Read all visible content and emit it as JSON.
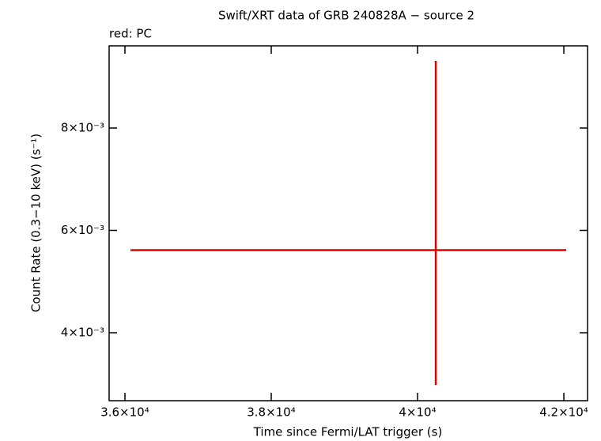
{
  "chart_data": {
    "type": "errorbar",
    "title": "Swift/XRT data of GRB 240828A − source 2",
    "x_label": "Time since Fermi/LAT trigger (s)",
    "y_label": "Count Rate (0.3−10 keV) (s⁻¹)",
    "series": [
      {
        "name": "red: PC",
        "color": "#e00000",
        "x": [
          40249
        ],
        "xerr_minus": [
          4173
        ],
        "xerr_plus": [
          1783
        ],
        "values": [
          0.005614
        ],
        "yerr_minus": [
          0.002634
        ],
        "yerr_plus": [
          0.003699
        ]
      }
    ],
    "xlim": [
      35784,
      42324
    ],
    "xticks": [
      {
        "value": 36000,
        "label": "3.6×10⁴"
      },
      {
        "value": 38000,
        "label": "3.8×10⁴"
      },
      {
        "value": 40000,
        "label": "4×10⁴"
      },
      {
        "value": 42000,
        "label": "4.2×10⁴"
      }
    ],
    "ylim": [
      0.002672,
      0.009606
    ],
    "yticks": [
      {
        "value": 0.004,
        "label": "4×10⁻³"
      },
      {
        "value": 0.006,
        "label": "6×10⁻³"
      },
      {
        "value": 0.008,
        "label": "8×10⁻³"
      }
    ]
  }
}
